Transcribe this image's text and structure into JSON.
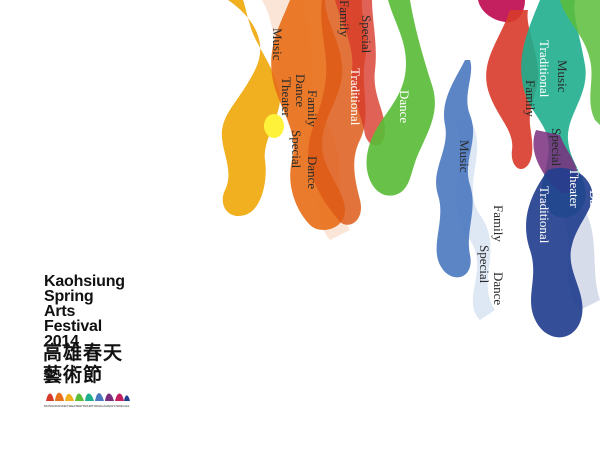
{
  "festival": {
    "title_lines": [
      "Kaohsiung",
      "Spring",
      "Arts",
      "Festival",
      "2014"
    ],
    "cjk_lines": [
      "高雄春天",
      "藝術節"
    ],
    "genre_caption": "MUSIC/DANCE/THEATER/TRADITIONAL/FAMILY/SPECIAL"
  },
  "genres": [
    "Music",
    "Dance",
    "Theater",
    "Traditional",
    "Family",
    "Special"
  ],
  "colors": {
    "yellow": "#f0b020",
    "orange": "#e8701a",
    "orange_dark": "#dd5a18",
    "red": "#d83a2a",
    "green": "#5bbd3a",
    "teal": "#1fae8e",
    "blue": "#4a78c0",
    "navy": "#233f8e",
    "purple": "#7a2e7e",
    "magenta": "#c42060"
  }
}
